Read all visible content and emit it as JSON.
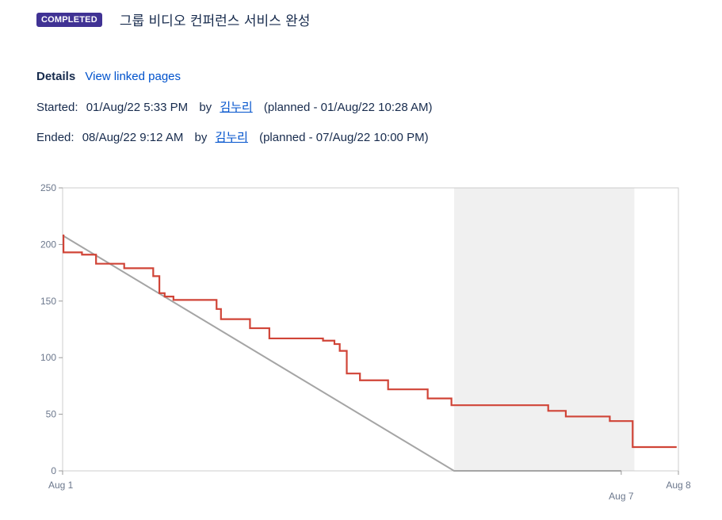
{
  "sprint": {
    "status": "COMPLETED",
    "title": "그룹 비디오 컨퍼런스 서비스 완성"
  },
  "details": {
    "label": "Details",
    "link": "View linked pages"
  },
  "started": {
    "label": "Started:",
    "datetime": "01/Aug/22 5:33 PM",
    "by": "by",
    "user": "김누리",
    "planned": "(planned - 01/Aug/22 10:28 AM)"
  },
  "ended": {
    "label": "Ended:",
    "datetime": "08/Aug/22 9:12 AM",
    "by": "by",
    "user": "김누리",
    "planned": "(planned - 07/Aug/22 10:00 PM)"
  },
  "colors": {
    "badge": "#403294",
    "link": "#0052cc",
    "remaining": "#d04437",
    "guideline": "#a5a5a5",
    "nonworking": "#f0f0f0"
  },
  "chart_data": {
    "type": "line",
    "x_unit": "days since Aug 1",
    "ylim": [
      0,
      250
    ],
    "xlim": [
      0,
      7.0
    ],
    "y_ticks": [
      0,
      50,
      100,
      150,
      200,
      250
    ],
    "x_tick_labels": [
      {
        "label": "Aug 1",
        "x": 0
      },
      {
        "label": "Aug 7",
        "x": 6.35
      },
      {
        "label": "Aug 8",
        "x": 7.0
      }
    ],
    "nonworking_range": [
      4.45,
      6.5
    ],
    "series": [
      {
        "name": "Guideline",
        "color": "#a5a5a5",
        "points": [
          [
            0,
            208
          ],
          [
            4.45,
            0
          ],
          [
            6.35,
            0
          ]
        ]
      },
      {
        "name": "Remaining Values",
        "color": "#d04437",
        "step": true,
        "points": [
          [
            0,
            208
          ],
          [
            0.01,
            193
          ],
          [
            0.22,
            191
          ],
          [
            0.38,
            183
          ],
          [
            0.7,
            179
          ],
          [
            1.03,
            172
          ],
          [
            1.1,
            157
          ],
          [
            1.16,
            154
          ],
          [
            1.26,
            151
          ],
          [
            1.75,
            143
          ],
          [
            1.8,
            134
          ],
          [
            2.13,
            126
          ],
          [
            2.35,
            117
          ],
          [
            2.96,
            115
          ],
          [
            3.09,
            112
          ],
          [
            3.15,
            106
          ],
          [
            3.23,
            86
          ],
          [
            3.38,
            80
          ],
          [
            3.7,
            72
          ],
          [
            4.15,
            64
          ],
          [
            4.42,
            58
          ],
          [
            5.52,
            53
          ],
          [
            5.72,
            48
          ],
          [
            6.22,
            44
          ],
          [
            6.48,
            21
          ],
          [
            6.98,
            21
          ]
        ]
      }
    ]
  }
}
